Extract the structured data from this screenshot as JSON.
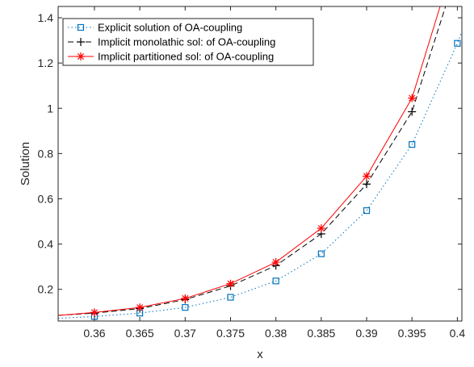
{
  "chart_data": {
    "type": "line",
    "title": "",
    "xlabel": "x",
    "ylabel": "Solution",
    "xlim": [
      0.356,
      0.4005
    ],
    "ylim": [
      0.06,
      1.45
    ],
    "xticks": [
      "0.36",
      "0.365",
      "0.37",
      "0.375",
      "0.38",
      "0.385",
      "0.39",
      "0.395",
      "0.4"
    ],
    "yticks": [
      "0.2",
      "0.4",
      "0.6",
      "0.8",
      "1",
      "1.2",
      "1.4"
    ],
    "grid": false,
    "legend_position": "top-left",
    "series": [
      {
        "name": "Explicit solution of OA-coupling",
        "color": "#0072BD",
        "line_style": "dotted",
        "marker": "square",
        "x": [
          0.356,
          0.36,
          0.365,
          0.37,
          0.375,
          0.38,
          0.385,
          0.39,
          0.395,
          0.4,
          0.4005
        ],
        "y": [
          0.072,
          0.08,
          0.095,
          0.12,
          0.165,
          0.237,
          0.357,
          0.548,
          0.84,
          1.287,
          1.34
        ],
        "marker_x": [
          0.36,
          0.365,
          0.37,
          0.375,
          0.38,
          0.385,
          0.39,
          0.395,
          0.4
        ],
        "marker_y": [
          0.08,
          0.095,
          0.12,
          0.165,
          0.237,
          0.357,
          0.548,
          0.84,
          1.287
        ]
      },
      {
        "name": "Implicit monolathic  sol: of OA-coupling",
        "color": "#000000",
        "line_style": "dashed",
        "marker": "plus",
        "x": [
          0.356,
          0.36,
          0.365,
          0.37,
          0.375,
          0.38,
          0.385,
          0.39,
          0.395,
          0.3987
        ],
        "y": [
          0.085,
          0.095,
          0.115,
          0.155,
          0.215,
          0.305,
          0.445,
          0.665,
          0.985,
          1.45
        ],
        "marker_x": [
          0.36,
          0.365,
          0.37,
          0.375,
          0.38,
          0.385,
          0.39,
          0.395
        ],
        "marker_y": [
          0.095,
          0.115,
          0.155,
          0.215,
          0.305,
          0.445,
          0.665,
          0.985
        ]
      },
      {
        "name": "Implicit partitioned  sol: of OA-coupling",
        "color": "#FF0000",
        "line_style": "solid",
        "marker": "asterisk",
        "x": [
          0.356,
          0.36,
          0.365,
          0.37,
          0.375,
          0.38,
          0.385,
          0.39,
          0.395,
          0.3981
        ],
        "y": [
          0.085,
          0.098,
          0.12,
          0.16,
          0.225,
          0.32,
          0.47,
          0.7,
          1.045,
          1.45
        ],
        "marker_x": [
          0.36,
          0.365,
          0.37,
          0.375,
          0.38,
          0.385,
          0.39,
          0.395
        ],
        "marker_y": [
          0.098,
          0.12,
          0.16,
          0.225,
          0.32,
          0.47,
          0.7,
          1.045
        ]
      }
    ]
  }
}
